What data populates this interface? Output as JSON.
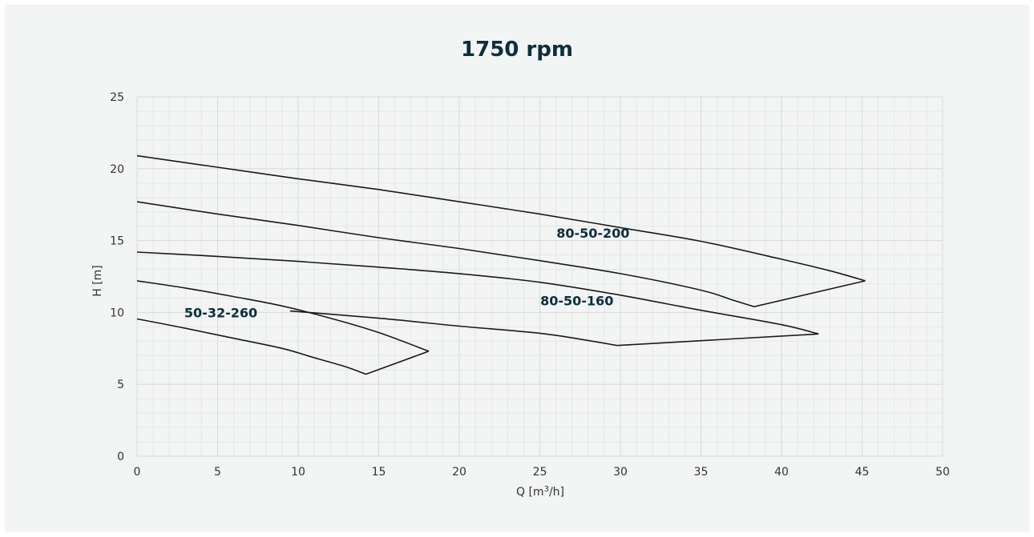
{
  "chart_data": {
    "type": "line",
    "title": "1750 rpm",
    "xlabel": "Q [m",
    "xlabel_sup": "3",
    "xlabel_tail": "/h]",
    "ylabel": "H [m]",
    "xlim": [
      0,
      50
    ],
    "ylim": [
      0,
      25
    ],
    "xticks": [
      0,
      5,
      10,
      15,
      20,
      25,
      30,
      35,
      40,
      45,
      50
    ],
    "yticks": [
      0,
      5,
      10,
      15,
      20,
      25
    ],
    "grid": true,
    "colors": {
      "background": "#f3f4f4",
      "curve": "#1a1a1a",
      "label": "#0b2f3e"
    },
    "series": [
      {
        "name": "80-50-200",
        "upper": [
          [
            0,
            20.9
          ],
          [
            5,
            20.1
          ],
          [
            10,
            19.3
          ],
          [
            15,
            18.55
          ],
          [
            20,
            17.7
          ],
          [
            25,
            16.85
          ],
          [
            30,
            15.9
          ],
          [
            35,
            14.95
          ],
          [
            40,
            13.7
          ],
          [
            43,
            12.9
          ],
          [
            45.2,
            12.2
          ]
        ],
        "lower": [
          [
            0,
            17.7
          ],
          [
            5,
            16.85
          ],
          [
            10,
            16.05
          ],
          [
            15,
            15.2
          ],
          [
            20,
            14.45
          ],
          [
            25,
            13.6
          ],
          [
            30,
            12.7
          ],
          [
            35,
            11.55
          ],
          [
            37,
            10.85
          ],
          [
            38.3,
            10.4
          ]
        ],
        "closure": [
          [
            38.3,
            10.4
          ],
          [
            45.2,
            12.2
          ]
        ],
        "label": "80-50-200",
        "label_at": [
          28.3,
          15.2
        ]
      },
      {
        "name": "80-50-160",
        "upper": [
          [
            0,
            14.2
          ],
          [
            5,
            13.9
          ],
          [
            10,
            13.55
          ],
          [
            15,
            13.15
          ],
          [
            20,
            12.7
          ],
          [
            25,
            12.1
          ],
          [
            30,
            11.2
          ],
          [
            35,
            10.15
          ],
          [
            40,
            9.15
          ],
          [
            42.3,
            8.5
          ]
        ],
        "lower": [
          [
            9.5,
            10.1
          ],
          [
            15,
            9.6
          ],
          [
            20,
            9.05
          ],
          [
            25,
            8.55
          ],
          [
            28,
            8.05
          ],
          [
            29.8,
            7.7
          ]
        ],
        "closure": [
          [
            29.8,
            7.7
          ],
          [
            42.3,
            8.5
          ]
        ],
        "label": "80-50-160",
        "label_at": [
          27.3,
          10.5
        ]
      },
      {
        "name": "50-32-260",
        "upper": [
          [
            0,
            12.2
          ],
          [
            3,
            11.7
          ],
          [
            6,
            11.1
          ],
          [
            9,
            10.45
          ],
          [
            12,
            9.6
          ],
          [
            15,
            8.6
          ],
          [
            18.1,
            7.3
          ]
        ],
        "lower": [
          [
            0,
            9.55
          ],
          [
            3,
            8.9
          ],
          [
            6,
            8.2
          ],
          [
            9,
            7.5
          ],
          [
            11,
            6.85
          ],
          [
            13,
            6.2
          ],
          [
            14.2,
            5.7
          ]
        ],
        "closure": [
          [
            14.2,
            5.7
          ],
          [
            18.1,
            7.3
          ]
        ],
        "label": "50-32-260",
        "label_at": [
          5.2,
          9.65
        ]
      }
    ]
  }
}
